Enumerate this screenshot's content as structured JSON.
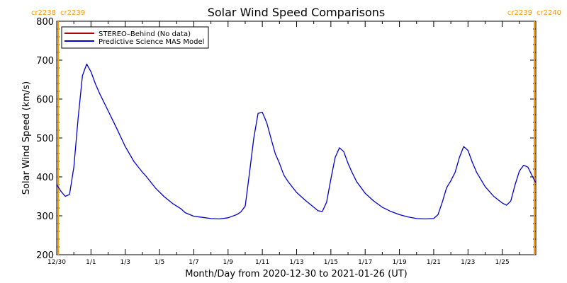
{
  "chart_data": {
    "type": "line",
    "title": "Solar Wind Speed Comparisons",
    "xlabel": "Month/Day from 2020-12-30 to 2021-01-26 (UT)",
    "ylabel": "Solar Wind Speed (km/s)",
    "ylim": [
      200,
      800
    ],
    "xlim": [
      "2020-12-30",
      "2021-01-26 23:00"
    ],
    "y_ticks": [
      200,
      300,
      400,
      500,
      600,
      700,
      800
    ],
    "x_ticks": [
      {
        "date": "2020-12-30",
        "label": "12/30"
      },
      {
        "date": "2021-01-01",
        "label": "1/1"
      },
      {
        "date": "2021-01-03",
        "label": "1/3"
      },
      {
        "date": "2021-01-05",
        "label": "1/5"
      },
      {
        "date": "2021-01-07",
        "label": "1/7"
      },
      {
        "date": "2021-01-09",
        "label": "1/9"
      },
      {
        "date": "2021-01-11",
        "label": "1/11"
      },
      {
        "date": "2021-01-13",
        "label": "1/13"
      },
      {
        "date": "2021-01-15",
        "label": "1/15"
      },
      {
        "date": "2021-01-17",
        "label": "1/17"
      },
      {
        "date": "2021-01-19",
        "label": "1/19"
      },
      {
        "date": "2021-01-21",
        "label": "1/21"
      },
      {
        "date": "2021-01-23",
        "label": "1/23"
      },
      {
        "date": "2021-01-25",
        "label": "1/25"
      }
    ],
    "legend_position": "top-left",
    "grid": false,
    "series": [
      {
        "name": "STEREO–Behind (No data)",
        "color": "#b00000",
        "values": []
      },
      {
        "name": "Predictive Science MAS Model",
        "color": "#0000cc",
        "points": [
          [
            "2020-12-30 00:00",
            380
          ],
          [
            "2020-12-30 06:00",
            363
          ],
          [
            "2020-12-30 12:00",
            350
          ],
          [
            "2020-12-30 18:00",
            355
          ],
          [
            "2020-12-31 00:00",
            425
          ],
          [
            "2020-12-31 06:00",
            550
          ],
          [
            "2020-12-31 12:00",
            660
          ],
          [
            "2020-12-31 18:00",
            690
          ],
          [
            "2021-01-01 00:00",
            670
          ],
          [
            "2021-01-01 06:00",
            640
          ],
          [
            "2021-01-01 12:00",
            615
          ],
          [
            "2021-01-02 00:00",
            570
          ],
          [
            "2021-01-02 12:00",
            525
          ],
          [
            "2021-01-03 00:00",
            478
          ],
          [
            "2021-01-03 12:00",
            440
          ],
          [
            "2021-01-04 00:00",
            412
          ],
          [
            "2021-01-04 06:00",
            400
          ],
          [
            "2021-01-04 18:00",
            372
          ],
          [
            "2021-01-05 06:00",
            350
          ],
          [
            "2021-01-05 18:00",
            332
          ],
          [
            "2021-01-06 06:00",
            318
          ],
          [
            "2021-01-06 12:00",
            308
          ],
          [
            "2021-01-07 00:00",
            299
          ],
          [
            "2021-01-07 12:00",
            296
          ],
          [
            "2021-01-08 00:00",
            293
          ],
          [
            "2021-01-08 12:00",
            292
          ],
          [
            "2021-01-09 00:00",
            295
          ],
          [
            "2021-01-09 12:00",
            303
          ],
          [
            "2021-01-09 18:00",
            310
          ],
          [
            "2021-01-10 00:00",
            325
          ],
          [
            "2021-01-10 06:00",
            410
          ],
          [
            "2021-01-10 12:00",
            500
          ],
          [
            "2021-01-10 18:00",
            563
          ],
          [
            "2021-01-11 00:00",
            566
          ],
          [
            "2021-01-11 06:00",
            540
          ],
          [
            "2021-01-11 12:00",
            500
          ],
          [
            "2021-01-11 18:00",
            460
          ],
          [
            "2021-01-12 00:00",
            435
          ],
          [
            "2021-01-12 06:00",
            405
          ],
          [
            "2021-01-12 12:00",
            388
          ],
          [
            "2021-01-13 00:00",
            360
          ],
          [
            "2021-01-13 12:00",
            340
          ],
          [
            "2021-01-14 00:00",
            322
          ],
          [
            "2021-01-14 06:00",
            313
          ],
          [
            "2021-01-14 12:00",
            311
          ],
          [
            "2021-01-14 18:00",
            335
          ],
          [
            "2021-01-15 00:00",
            395
          ],
          [
            "2021-01-15 06:00",
            450
          ],
          [
            "2021-01-15 12:00",
            475
          ],
          [
            "2021-01-15 18:00",
            465
          ],
          [
            "2021-01-16 00:00",
            435
          ],
          [
            "2021-01-16 06:00",
            410
          ],
          [
            "2021-01-16 12:00",
            388
          ],
          [
            "2021-01-17 00:00",
            358
          ],
          [
            "2021-01-17 12:00",
            338
          ],
          [
            "2021-01-18 00:00",
            322
          ],
          [
            "2021-01-18 12:00",
            311
          ],
          [
            "2021-01-19 00:00",
            303
          ],
          [
            "2021-01-19 12:00",
            297
          ],
          [
            "2021-01-20 00:00",
            293
          ],
          [
            "2021-01-20 12:00",
            292
          ],
          [
            "2021-01-21 00:00",
            293
          ],
          [
            "2021-01-21 06:00",
            303
          ],
          [
            "2021-01-21 12:00",
            335
          ],
          [
            "2021-01-21 18:00",
            372
          ],
          [
            "2021-01-22 00:00",
            390
          ],
          [
            "2021-01-22 06:00",
            412
          ],
          [
            "2021-01-22 12:00",
            450
          ],
          [
            "2021-01-22 18:00",
            478
          ],
          [
            "2021-01-23 00:00",
            468
          ],
          [
            "2021-01-23 06:00",
            438
          ],
          [
            "2021-01-23 12:00",
            412
          ],
          [
            "2021-01-24 00:00",
            375
          ],
          [
            "2021-01-24 12:00",
            350
          ],
          [
            "2021-01-25 00:00",
            333
          ],
          [
            "2021-01-25 06:00",
            327
          ],
          [
            "2021-01-25 12:00",
            338
          ],
          [
            "2021-01-25 18:00",
            380
          ],
          [
            "2021-01-26 00:00",
            415
          ],
          [
            "2021-01-26 06:00",
            430
          ],
          [
            "2021-01-26 12:00",
            425
          ],
          [
            "2021-01-26 18:00",
            402
          ],
          [
            "2021-01-26 23:00",
            385
          ]
        ]
      }
    ],
    "carrington_markers": [
      {
        "date": "2020-12-30 02:00",
        "color": "#ff9900",
        "label_left": "cr2238",
        "label_right": "cr2239"
      },
      {
        "date": "2021-01-26 21:00",
        "color": "#ff9900",
        "label_left": "cr2239",
        "label_right": "cr2240"
      }
    ]
  }
}
